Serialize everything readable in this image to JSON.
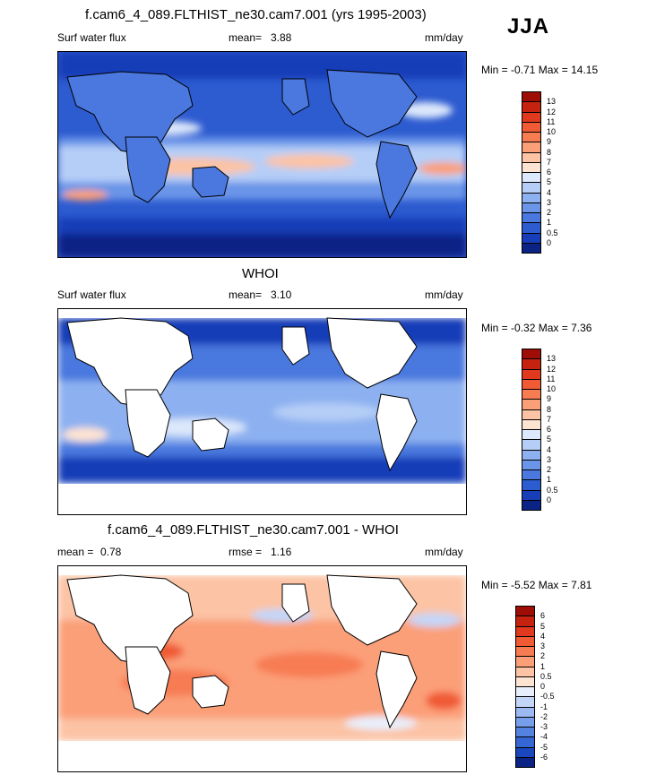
{
  "season": "JJA",
  "panels": [
    {
      "title": "f.cam6_4_089.FLTHIST_ne30.cam7.001 (yrs 1995-2003)",
      "left_label": "Surf water flux",
      "center_label": "mean=",
      "center_value": "3.88",
      "units": "mm/day",
      "min_label": "Min =",
      "min_value": "-0.71",
      "max_label": "Max =",
      "max_value": "14.15",
      "colorbar": [
        "13",
        "12",
        "11",
        "10",
        "9",
        "8",
        "7",
        "6",
        "5",
        "4",
        "3",
        "2",
        "1",
        "0.5",
        "0"
      ],
      "colors": [
        "#9e0d06",
        "#c5230f",
        "#e0391d",
        "#f05a34",
        "#f77c52",
        "#fb9f78",
        "#fcc3a4",
        "#fde3d2",
        "#dce8fb",
        "#b5cef7",
        "#8db1f0",
        "#6a95e8",
        "#4a78de",
        "#2d5bd0",
        "#173eb8",
        "#0a2385"
      ]
    },
    {
      "title": "WHOI",
      "left_label": "Surf water flux",
      "center_label": "mean=",
      "center_value": "3.10",
      "units": "mm/day",
      "min_label": "Min =",
      "min_value": "-0.32",
      "max_label": "Max =",
      "max_value": "7.36",
      "colorbar": [
        "13",
        "12",
        "11",
        "10",
        "9",
        "8",
        "7",
        "6",
        "5",
        "4",
        "3",
        "2",
        "1",
        "0.5",
        "0"
      ],
      "colors": [
        "#9e0d06",
        "#c5230f",
        "#e0391d",
        "#f05a34",
        "#f77c52",
        "#fb9f78",
        "#fcc3a4",
        "#fde3d2",
        "#dce8fb",
        "#b5cef7",
        "#8db1f0",
        "#6a95e8",
        "#4a78de",
        "#2d5bd0",
        "#173eb8",
        "#0a2385"
      ]
    },
    {
      "title": "f.cam6_4_089.FLTHIST_ne30.cam7.001 - WHOI",
      "left_label": "mean =",
      "left_value": "0.78",
      "center_label": "rmse =",
      "center_value": "1.16",
      "units": "mm/day",
      "min_label": "Min =",
      "min_value": "-5.52",
      "max_label": "Max =",
      "max_value": "7.81",
      "colorbar": [
        "6",
        "5",
        "4",
        "3",
        "2",
        "1",
        "0.5",
        "0",
        "-0.5",
        "-1",
        "-2",
        "-3",
        "-4",
        "-5",
        "-6"
      ],
      "colors": [
        "#9e0d06",
        "#c5230f",
        "#e0391d",
        "#f05a34",
        "#f77c52",
        "#fb9f78",
        "#fcc3a4",
        "#fde3d2",
        "#e8effc",
        "#c4d6f7",
        "#9cbaf1",
        "#779eea",
        "#5482e0",
        "#3466d4",
        "#1a47bd",
        "#0a2385"
      ]
    }
  ],
  "chart_data": {
    "type": "heatmap",
    "title": "Surf water flux (JJA)",
    "units": "mm/day",
    "panels": [
      {
        "name": "f.cam6_4_089.FLTHIST_ne30.cam7.001 (yrs 1995-2003)",
        "mean": 3.88,
        "min": -0.71,
        "max": 14.15,
        "levels": [
          0,
          0.5,
          1,
          2,
          3,
          4,
          5,
          6,
          7,
          8,
          9,
          10,
          11,
          12,
          13
        ]
      },
      {
        "name": "WHOI",
        "mean": 3.1,
        "min": -0.32,
        "max": 7.36,
        "levels": [
          0,
          0.5,
          1,
          2,
          3,
          4,
          5,
          6,
          7,
          8,
          9,
          10,
          11,
          12,
          13
        ]
      },
      {
        "name": "f.cam6_4_089.FLTHIST_ne30.cam7.001 - WHOI",
        "mean": 0.78,
        "rmse": 1.16,
        "min": -5.52,
        "max": 7.81,
        "levels": [
          -6,
          -5,
          -4,
          -3,
          -2,
          -1,
          -0.5,
          0,
          0.5,
          1,
          2,
          3,
          4,
          5,
          6
        ]
      }
    ]
  }
}
